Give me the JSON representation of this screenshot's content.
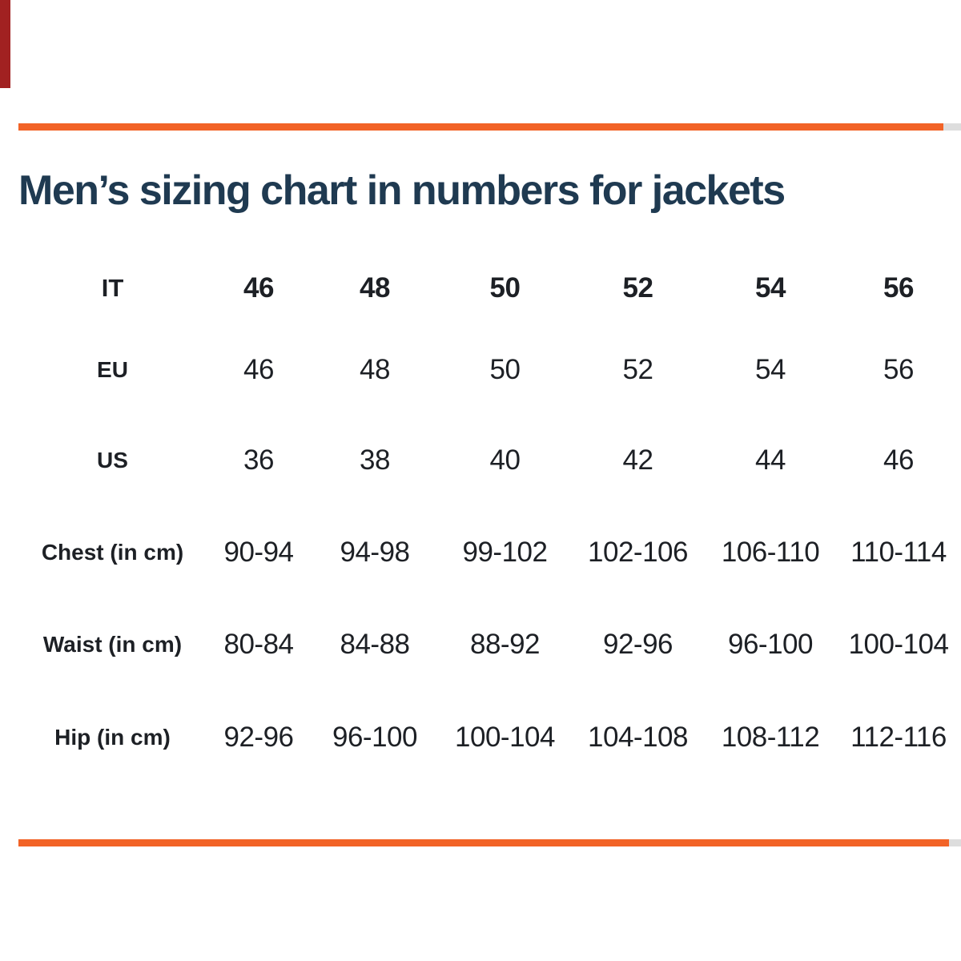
{
  "colors": {
    "accent_orange": "#F26327",
    "divider_gray": "#DDDDDD",
    "title_navy": "#1F3A51",
    "table_text": "#1D2025",
    "corner_bar_red": "#A12121",
    "background": "#FFFFFF"
  },
  "chart_data": {
    "type": "table",
    "title": "Men’s sizing chart in numbers for jackets",
    "rows": [
      {
        "label": "IT",
        "bold": true,
        "values": [
          "46",
          "48",
          "50",
          "52",
          "54",
          "56"
        ]
      },
      {
        "label": "EU",
        "bold": false,
        "values": [
          "46",
          "48",
          "50",
          "52",
          "54",
          "56"
        ]
      },
      {
        "label": "US",
        "bold": false,
        "values": [
          "36",
          "38",
          "40",
          "42",
          "44",
          "46"
        ]
      },
      {
        "label": "Chest (in cm)",
        "bold": false,
        "values": [
          "90-94",
          "94-98",
          "99-102",
          "102-106",
          "106-110",
          "110-114"
        ]
      },
      {
        "label": "Waist (in cm)",
        "bold": false,
        "values": [
          "80-84",
          "84-88",
          "88-92",
          "92-96",
          "96-100",
          "100-104"
        ]
      },
      {
        "label": "Hip (in cm)",
        "bold": false,
        "values": [
          "92-96",
          "96-100",
          "100-104",
          "104-108",
          "108-112",
          "112-116"
        ]
      }
    ],
    "layout": {
      "legend": "none",
      "grid": "off",
      "label_column_first": true,
      "data_columns": 6
    }
  }
}
